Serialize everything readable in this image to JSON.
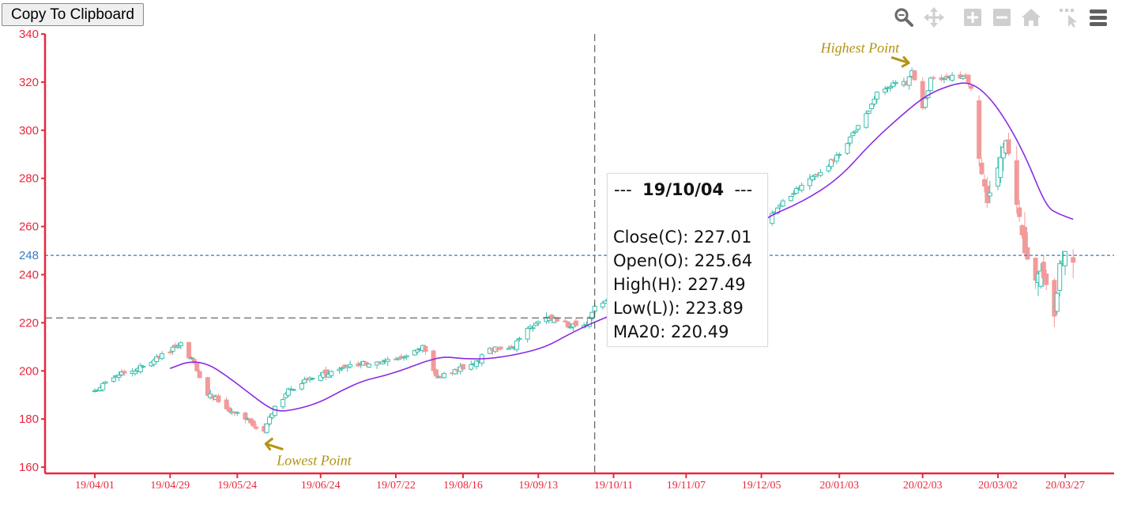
{
  "toolbar": {
    "copy_label": "Copy To Clipboard",
    "icons": [
      "zoom-icon",
      "pan-icon",
      "zoom-in-icon",
      "zoom-out-icon",
      "home-icon",
      "select-icon",
      "menu-icon"
    ]
  },
  "colors": {
    "axis": "#e8283c",
    "up": "#3fbfae",
    "down": "#f29a9a",
    "ma20": "#8a2be2",
    "guide": "#3a7bbf",
    "annotation": "#b39313"
  },
  "crosshair": {
    "date": "19/10/04",
    "y_value": 222
  },
  "reference_line": {
    "value": 248,
    "label": "248"
  },
  "tooltip": {
    "dash_left": "---",
    "date": "19/10/04",
    "dash_right": "---",
    "rows": [
      {
        "label": "Close(C): 227.01"
      },
      {
        "label": "Open(O): 225.64"
      },
      {
        "label": "High(H): 227.49"
      },
      {
        "label": "Low(L)): 223.89"
      },
      {
        "label": "MA20: 220.49"
      }
    ]
  },
  "annotations": {
    "highest": {
      "text": "Highest Point",
      "date": "20/01/30",
      "value": 327
    },
    "lowest": {
      "text": "Lowest Point",
      "date": "19/06/03",
      "value": 173
    }
  },
  "chart_data": {
    "type": "candlestick",
    "ylim": [
      157,
      340
    ],
    "y_ticks": [
      160,
      180,
      200,
      220,
      240,
      260,
      280,
      300,
      320,
      340
    ],
    "x_ticks": [
      "19/04/01",
      "19/04/29",
      "19/05/24",
      "19/06/24",
      "19/07/22",
      "19/08/16",
      "19/09/13",
      "19/10/11",
      "19/11/07",
      "19/12/05",
      "20/01/03",
      "20/02/03",
      "20/03/02",
      "20/03/27"
    ],
    "x_range_days": [
      "2019-03-31",
      "2020-03-31"
    ],
    "anchors": [
      [
        "2019-04-01",
        191
      ],
      [
        "2019-04-05",
        195
      ],
      [
        "2019-04-10",
        199
      ],
      [
        "2019-04-16",
        200
      ],
      [
        "2019-04-22",
        204
      ],
      [
        "2019-04-26",
        207
      ],
      [
        "2019-04-30",
        209
      ],
      [
        "2019-05-03",
        211
      ],
      [
        "2019-05-08",
        203
      ],
      [
        "2019-05-13",
        190
      ],
      [
        "2019-05-17",
        188
      ],
      [
        "2019-05-22",
        183
      ],
      [
        "2019-05-28",
        180
      ],
      [
        "2019-06-03",
        174
      ],
      [
        "2019-06-06",
        183
      ],
      [
        "2019-06-12",
        192
      ],
      [
        "2019-06-19",
        196
      ],
      [
        "2019-06-26",
        199
      ],
      [
        "2019-07-02",
        201
      ],
      [
        "2019-07-10",
        203
      ],
      [
        "2019-07-18",
        204
      ],
      [
        "2019-07-26",
        207
      ],
      [
        "2019-08-01",
        210
      ],
      [
        "2019-08-06",
        197
      ],
      [
        "2019-08-13",
        200
      ],
      [
        "2019-08-20",
        203
      ],
      [
        "2019-08-26",
        209
      ],
      [
        "2019-09-03",
        209
      ],
      [
        "2019-09-10",
        218
      ],
      [
        "2019-09-17",
        222
      ],
      [
        "2019-09-24",
        219
      ],
      [
        "2019-10-01",
        219
      ],
      [
        "2019-10-04",
        227
      ],
      [
        "2019-10-11",
        232
      ],
      [
        "2019-10-18",
        237
      ],
      [
        "2019-10-25",
        242
      ],
      [
        "2019-11-01",
        246
      ],
      [
        "2019-11-08",
        249
      ],
      [
        "2019-11-15",
        251
      ],
      [
        "2019-11-22",
        252
      ],
      [
        "2019-11-29",
        254
      ],
      [
        "2019-12-06",
        262
      ],
      [
        "2019-12-13",
        270
      ],
      [
        "2019-12-20",
        278
      ],
      [
        "2019-12-27",
        283
      ],
      [
        "2020-01-03",
        290
      ],
      [
        "2020-01-09",
        300
      ],
      [
        "2020-01-14",
        308
      ],
      [
        "2020-01-17",
        316
      ],
      [
        "2020-01-23",
        319
      ],
      [
        "2020-01-28",
        320
      ],
      [
        "2020-01-30",
        324
      ],
      [
        "2020-02-03",
        309
      ],
      [
        "2020-02-06",
        321
      ],
      [
        "2020-02-10",
        322
      ],
      [
        "2020-02-14",
        323
      ],
      [
        "2020-02-19",
        322
      ],
      [
        "2020-02-21",
        318
      ],
      [
        "2020-02-24",
        288
      ],
      [
        "2020-02-27",
        270
      ],
      [
        "2020-03-02",
        284
      ],
      [
        "2020-03-05",
        296
      ],
      [
        "2020-03-09",
        270
      ],
      [
        "2020-03-12",
        250
      ],
      [
        "2020-03-16",
        238
      ],
      [
        "2020-03-18",
        242
      ],
      [
        "2020-03-20",
        235
      ],
      [
        "2020-03-23",
        222
      ],
      [
        "2020-03-25",
        244
      ],
      [
        "2020-03-27",
        249
      ],
      [
        "2020-03-30",
        246
      ]
    ],
    "ma20": [
      [
        "2019-04-29",
        201
      ],
      [
        "2019-05-06",
        204
      ],
      [
        "2019-05-13",
        203
      ],
      [
        "2019-05-20",
        198
      ],
      [
        "2019-05-27",
        192
      ],
      [
        "2019-06-03",
        186
      ],
      [
        "2019-06-08",
        183
      ],
      [
        "2019-06-15",
        184
      ],
      [
        "2019-06-24",
        187
      ],
      [
        "2019-07-02",
        192
      ],
      [
        "2019-07-10",
        196
      ],
      [
        "2019-07-18",
        198
      ],
      [
        "2019-07-26",
        201
      ],
      [
        "2019-08-02",
        204
      ],
      [
        "2019-08-09",
        206
      ],
      [
        "2019-08-16",
        205
      ],
      [
        "2019-08-26",
        205
      ],
      [
        "2019-09-06",
        207
      ],
      [
        "2019-09-16",
        210
      ],
      [
        "2019-09-24",
        215
      ],
      [
        "2019-10-04",
        220.49
      ],
      [
        "2019-10-15",
        225
      ],
      [
        "2019-11-01",
        236
      ],
      [
        "2019-11-20",
        247
      ],
      [
        "2019-12-05",
        263
      ],
      [
        "2019-12-20",
        270
      ],
      [
        "2020-01-03",
        280
      ],
      [
        "2020-01-15",
        295
      ],
      [
        "2020-01-28",
        308
      ],
      [
        "2020-02-05",
        315
      ],
      [
        "2020-02-14",
        319
      ],
      [
        "2020-02-20",
        320
      ],
      [
        "2020-02-26",
        316
      ],
      [
        "2020-03-04",
        306
      ],
      [
        "2020-03-12",
        290
      ],
      [
        "2020-03-20",
        268
      ],
      [
        "2020-03-25",
        265
      ],
      [
        "2020-03-30",
        263
      ]
    ]
  }
}
